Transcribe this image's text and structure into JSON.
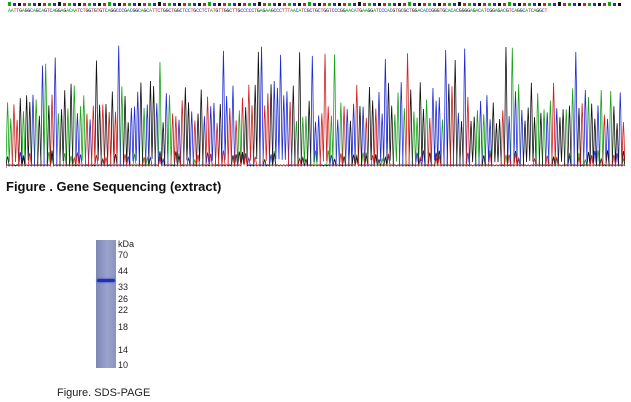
{
  "sequencing": {
    "bases": "AATTGAGGCAGCAGTCAGGAGACAATCTGGTGTGTCAGGCCCGACGGCAGCATTCTGGCTGGCTCCTGCCTCTATGTTGGCTTGCCCCCTGAGAAGCCCTTTAACATCGCTGCTGGTCCCGGAACATGAAGGATCCCACGTGCGCTGGACACCGGGTGCACACGGGGAGACATCGGAGACGTCAGGCATCAGGCT",
    "caption": "Figure . Gene Sequencing (extract)",
    "trace_colors": {
      "A": "#1aa21a",
      "C": "#1f2ad1",
      "G": "#111111",
      "T": "#d11f1f"
    }
  },
  "sds_page": {
    "unit_label": "kDa",
    "markers": [
      "70",
      "44",
      "33",
      "26",
      "22",
      "18",
      "14",
      "10"
    ],
    "caption": "Figure. SDS-PAGE"
  }
}
